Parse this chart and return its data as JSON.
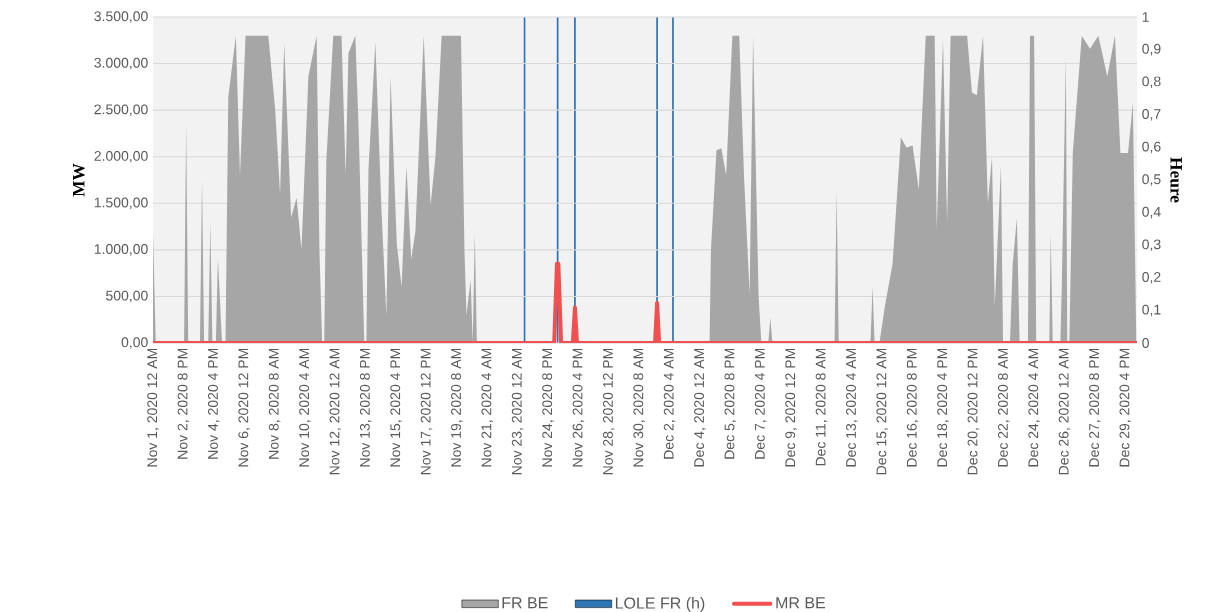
{
  "chart_data": {
    "type": "bar",
    "ylabel": "MW",
    "y2label": "Heure",
    "grid": "y",
    "legend": "bottom",
    "xlim": [
      "2020-11-01T00:00",
      "2020-12-30T09:00"
    ],
    "xticks": [
      {
        "value": "2020-11-01T00:00",
        "label": "Nov 1, 2020 12 AM"
      },
      {
        "value": "2020-11-02T20:00",
        "label": "Nov 2, 2020 8 PM"
      },
      {
        "value": "2020-11-04T16:00",
        "label": "Nov 4, 2020 4 PM"
      },
      {
        "value": "2020-11-06T12:00",
        "label": "Nov 6, 2020 12 PM"
      },
      {
        "value": "2020-11-08T08:00",
        "label": "Nov 8, 2020 8 AM"
      },
      {
        "value": "2020-11-10T04:00",
        "label": "Nov 10, 2020 4 AM"
      },
      {
        "value": "2020-11-12T00:00",
        "label": "Nov 12, 2020 12 AM"
      },
      {
        "value": "2020-11-13T20:00",
        "label": "Nov 13, 2020 8 PM"
      },
      {
        "value": "2020-11-15T16:00",
        "label": "Nov 15, 2020 4 PM"
      },
      {
        "value": "2020-11-17T12:00",
        "label": "Nov 17, 2020 12 PM"
      },
      {
        "value": "2020-11-19T08:00",
        "label": "Nov 19, 2020 8 AM"
      },
      {
        "value": "2020-11-21T04:00",
        "label": "Nov 21, 2020 4 AM"
      },
      {
        "value": "2020-11-23T00:00",
        "label": "Nov 23, 2020 12 AM"
      },
      {
        "value": "2020-11-24T20:00",
        "label": "Nov 24, 2020 8 PM"
      },
      {
        "value": "2020-11-26T16:00",
        "label": "Nov 26, 2020 4 PM"
      },
      {
        "value": "2020-11-28T12:00",
        "label": "Nov 28, 2020 12 PM"
      },
      {
        "value": "2020-11-30T08:00",
        "label": "Nov 30, 2020 8 AM"
      },
      {
        "value": "2020-12-02T04:00",
        "label": "Dec 2, 2020 4 AM"
      },
      {
        "value": "2020-12-04T00:00",
        "label": "Dec 4, 2020 12 AM"
      },
      {
        "value": "2020-12-05T20:00",
        "label": "Dec 5, 2020 8 PM"
      },
      {
        "value": "2020-12-07T16:00",
        "label": "Dec 7, 2020 4 PM"
      },
      {
        "value": "2020-12-09T12:00",
        "label": "Dec 9, 2020 12 PM"
      },
      {
        "value": "2020-12-11T08:00",
        "label": "Dec 11, 2020 8 AM"
      },
      {
        "value": "2020-12-13T04:00",
        "label": "Dec 13, 2020 4 AM"
      },
      {
        "value": "2020-12-15T00:00",
        "label": "Dec 15, 2020 12 AM"
      },
      {
        "value": "2020-12-16T20:00",
        "label": "Dec 16, 2020 8 PM"
      },
      {
        "value": "2020-12-18T16:00",
        "label": "Dec 18, 2020 4 PM"
      },
      {
        "value": "2020-12-20T12:00",
        "label": "Dec 20, 2020 12 PM"
      },
      {
        "value": "2020-12-22T08:00",
        "label": "Dec 22, 2020 8 AM"
      },
      {
        "value": "2020-12-24T04:00",
        "label": "Dec 24, 2020 4 AM"
      },
      {
        "value": "2020-12-26T00:00",
        "label": "Dec 26, 2020 12 AM"
      },
      {
        "value": "2020-12-27T20:00",
        "label": "Dec 27, 2020 8 PM"
      },
      {
        "value": "2020-12-29T16:00",
        "label": "Dec 29, 2020 4 PM"
      }
    ],
    "ylim": [
      0,
      3500
    ],
    "yticks": [
      {
        "value": 0,
        "label": "0,00"
      },
      {
        "value": 500,
        "label": "500,00"
      },
      {
        "value": 1000,
        "label": "1.000,00"
      },
      {
        "value": 1500,
        "label": "1.500,00"
      },
      {
        "value": 2000,
        "label": "2.000,00"
      },
      {
        "value": 2500,
        "label": "2.500,00"
      },
      {
        "value": 3000,
        "label": "3.000,00"
      },
      {
        "value": 3500,
        "label": "3.500,00"
      }
    ],
    "y2lim": [
      0,
      1
    ],
    "y2ticks": [
      0,
      {
        "value": 0.1,
        "label": "0,1"
      },
      {
        "value": 0.2,
        "label": "0,2"
      },
      {
        "value": 0.3,
        "label": "0,3"
      },
      {
        "value": 0.4,
        "label": "0,4"
      },
      {
        "value": 0.5,
        "label": "0,5"
      },
      {
        "value": 0.6,
        "label": "0,6"
      },
      {
        "value": 0.7,
        "label": "0,7"
      },
      {
        "value": 0.8,
        "label": "0,8"
      },
      {
        "value": 0.9,
        "label": "0,9"
      },
      1
    ],
    "series": [
      {
        "name": "FR BE",
        "type": "area",
        "color": "#a6a6a6",
        "x": [
          "2020-11-01T00:00",
          "2020-11-01T04:00",
          "2020-11-02T21:00",
          "2020-11-03T00:00",
          "2020-11-03T03:00",
          "2020-11-03T20:00",
          "2020-11-03T23:00",
          "2020-11-04T02:00",
          "2020-11-04T08:00",
          "2020-11-04T11:00",
          "2020-11-04T14:00",
          "2020-11-04T19:00",
          "2020-11-04T22:00",
          "2020-11-05T04:00",
          "2020-11-05T09:00",
          "2020-11-05T13:00",
          "2020-11-06T00:00",
          "2020-11-06T06:00",
          "2020-11-06T14:00",
          "2020-11-06T21:00",
          "2020-11-07T05:00",
          "2020-11-07T23:00",
          "2020-11-08T09:00",
          "2020-11-08T16:00",
          "2020-11-08T22:00",
          "2020-11-09T08:00",
          "2020-11-09T16:00",
          "2020-11-09T23:00",
          "2020-11-10T09:00",
          "2020-11-10T21:00",
          "2020-11-11T01:00",
          "2020-11-11T05:00",
          "2020-11-11T08:00",
          "2020-11-11T11:00",
          "2020-11-11T21:00",
          "2020-11-12T09:00",
          "2020-11-12T15:00",
          "2020-11-12T19:00",
          "2020-11-13T05:00",
          "2020-11-13T10:00",
          "2020-11-13T18:00",
          "2020-11-13T21:00",
          "2020-11-14T00:00",
          "2020-11-14T10:00",
          "2020-11-14T19:00",
          "2020-11-15T02:00",
          "2020-11-15T08:00",
          "2020-11-15T17:00",
          "2020-11-16T00:00",
          "2020-11-16T07:00",
          "2020-11-16T14:00",
          "2020-11-16T20:00",
          "2020-11-17T08:00",
          "2020-11-17T18:00",
          "2020-11-18T01:00",
          "2020-11-18T10:00",
          "2020-11-18T23:00",
          "2020-11-19T14:00",
          "2020-11-19T19:00",
          "2020-11-19T22:00",
          "2020-11-20T04:00",
          "2020-11-20T07:00",
          "2020-11-20T10:00",
          "2020-11-20T13:00",
          "2020-12-04T14:00",
          "2020-12-04T16:00",
          "2020-12-05T00:00",
          "2020-12-05T07:00",
          "2020-12-05T14:00",
          "2020-12-05T23:00",
          "2020-12-06T09:00",
          "2020-12-06T16:00",
          "2020-12-07T00:00",
          "2020-12-07T05:00",
          "2020-12-07T13:00",
          "2020-12-07T17:00",
          "2020-12-08T03:00",
          "2020-12-08T06:00",
          "2020-12-08T09:00",
          "2020-12-12T03:00",
          "2020-12-12T06:00",
          "2020-12-12T09:00",
          "2020-12-14T07:00",
          "2020-12-14T10:00",
          "2020-12-14T13:00",
          "2020-12-14T20:00",
          "2020-12-15T04:00",
          "2020-12-15T15:00",
          "2020-12-16T03:00",
          "2020-12-16T11:00",
          "2020-12-16T20:00",
          "2020-12-17T05:00",
          "2020-12-17T15:00",
          "2020-12-18T04:00",
          "2020-12-18T07:00",
          "2020-12-18T16:00",
          "2020-12-18T22:00",
          "2020-12-19T03:00",
          "2020-12-19T15:00",
          "2020-12-20T03:00",
          "2020-12-20T10:00",
          "2020-12-20T17:00",
          "2020-12-21T02:00",
          "2020-12-21T09:00",
          "2020-12-21T15:00",
          "2020-12-21T19:00",
          "2020-12-22T04:00",
          "2020-12-22T07:00",
          "2020-12-22T17:00",
          "2020-12-22T21:00",
          "2020-12-23T03:00",
          "2020-12-23T07:00",
          "2020-12-23T19:00",
          "2020-12-23T22:00",
          "2020-12-24T04:00",
          "2020-12-24T07:00",
          "2020-12-25T02:00",
          "2020-12-25T04:00",
          "2020-12-25T07:00",
          "2020-12-25T18:00",
          "2020-12-25T20:00",
          "2020-12-26T02:00",
          "2020-12-26T04:00",
          "2020-12-26T07:00",
          "2020-12-26T12:00",
          "2020-12-27T01:00",
          "2020-12-27T13:00",
          "2020-12-28T01:00",
          "2020-12-28T14:00",
          "2020-12-29T01:00",
          "2020-12-29T09:00",
          "2020-12-29T20:00",
          "2020-12-30T03:00",
          "2020-12-30T08:00"
        ],
        "values": [
          1180,
          0,
          0,
          2360,
          0,
          0,
          1770,
          0,
          0,
          1290,
          0,
          0,
          910,
          0,
          0,
          2640,
          3300,
          1800,
          3300,
          3300,
          3300,
          3300,
          2500,
          1600,
          3220,
          1350,
          1560,
          1000,
          2860,
          3300,
          1000,
          0,
          0,
          1960,
          3300,
          3300,
          1800,
          3110,
          3300,
          2250,
          0,
          0,
          1860,
          3230,
          1400,
          300,
          2860,
          1070,
          600,
          1900,
          900,
          1200,
          3300,
          1480,
          2000,
          3300,
          3300,
          3300,
          1000,
          300,
          680,
          0,
          1180,
          0,
          0,
          1000,
          2070,
          2090,
          1800,
          3300,
          3300,
          1770,
          530,
          3300,
          500,
          0,
          0,
          270,
          0,
          0,
          1640,
          0,
          0,
          600,
          0,
          0,
          400,
          850,
          2210,
          2100,
          2120,
          1650,
          3300,
          3300,
          1220,
          3260,
          1300,
          3300,
          3300,
          3300,
          2690,
          2660,
          3300,
          1500,
          2000,
          400,
          1900,
          0,
          0,
          850,
          1340,
          0,
          0,
          3300,
          3300,
          0,
          0,
          1180,
          0,
          0,
          580,
          3080,
          0,
          0,
          2040,
          3300,
          3160,
          3300,
          2860,
          3300,
          2040,
          2040,
          2580,
          0
        ]
      },
      {
        "name": "LOLE FR (h)",
        "axis": "y2",
        "color": "#2e75b6",
        "x": [
          "2020-11-23T10:00",
          "2020-11-25T10:00",
          "2020-11-26T11:00",
          "2020-12-01T10:00",
          "2020-12-02T09:00"
        ],
        "values": [
          1,
          1,
          1,
          1,
          1
        ]
      },
      {
        "name": "MR BE",
        "type": "line",
        "color": "#f05050",
        "x": [
          "2020-11-01T00:00",
          "2020-11-25T05:00",
          "2020-11-25T09:00",
          "2020-11-25T11:00",
          "2020-11-25T15:00",
          "2020-11-26T08:00",
          "2020-11-26T11:00",
          "2020-11-26T14:00",
          "2020-12-01T07:00",
          "2020-12-01T10:00",
          "2020-12-01T13:00",
          "2020-12-30T08:00"
        ],
        "values": [
          0,
          0,
          850,
          850,
          0,
          0,
          380,
          0,
          0,
          430,
          0,
          0
        ]
      }
    ]
  }
}
